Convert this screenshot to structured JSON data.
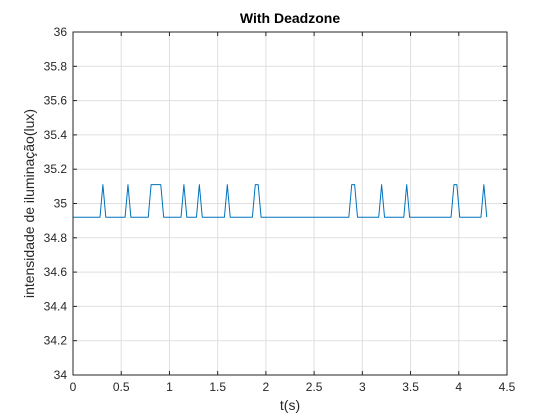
{
  "chart_data": {
    "type": "line",
    "title": "With Deadzone",
    "xlabel": "t(s)",
    "ylabel": "intensidade de iluminação(lux)",
    "xlim": [
      0,
      4.5
    ],
    "ylim": [
      34,
      36
    ],
    "x_ticks": [
      0,
      0.5,
      1,
      1.5,
      2,
      2.5,
      3,
      3.5,
      4,
      4.5
    ],
    "x_tick_labels": [
      "0",
      "0.5",
      "1",
      "1.5",
      "2",
      "2.5",
      "3",
      "3.5",
      "4",
      "4.5"
    ],
    "y_ticks": [
      34,
      34.2,
      34.4,
      34.6,
      34.8,
      35,
      35.2,
      35.4,
      35.6,
      35.8,
      36
    ],
    "y_tick_labels": [
      "34",
      "34.2",
      "34.4",
      "34.6",
      "34.8",
      "35",
      "35.2",
      "35.4",
      "35.6",
      "35.8",
      "36"
    ],
    "grid": true,
    "series": [
      {
        "color": "#0072BD",
        "x": [
          0,
          0.28,
          0.31,
          0.34,
          0.54,
          0.57,
          0.6,
          0.78,
          0.81,
          0.91,
          0.94,
          1.12,
          1.15,
          1.18,
          1.28,
          1.31,
          1.34,
          1.57,
          1.6,
          1.63,
          1.86,
          1.89,
          1.92,
          1.95,
          2.86,
          2.89,
          2.92,
          2.95,
          3.17,
          3.2,
          3.23,
          3.43,
          3.46,
          3.49,
          3.92,
          3.95,
          3.98,
          4.01,
          4.23,
          4.26,
          4.29
        ],
        "y": [
          34.92,
          34.92,
          35.11,
          34.92,
          34.92,
          35.11,
          34.92,
          34.92,
          35.11,
          35.11,
          34.92,
          34.92,
          35.11,
          34.92,
          34.92,
          35.11,
          34.92,
          34.92,
          35.11,
          34.92,
          34.92,
          35.11,
          35.11,
          34.92,
          34.92,
          35.11,
          35.11,
          34.92,
          34.92,
          35.11,
          34.92,
          34.92,
          35.11,
          34.92,
          34.92,
          35.11,
          35.11,
          34.92,
          34.92,
          35.11,
          34.92
        ]
      }
    ]
  }
}
